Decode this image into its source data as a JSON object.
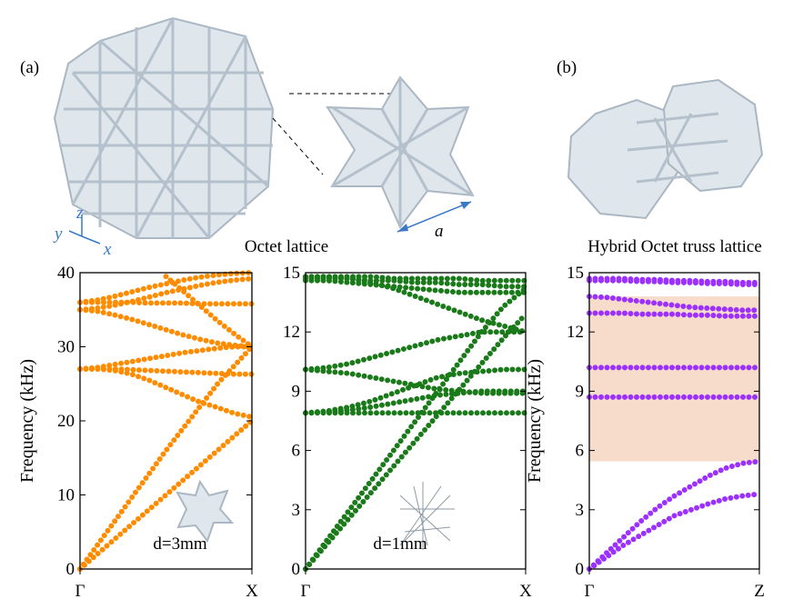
{
  "figure": {
    "panel_labels": [
      "(a)",
      "(b)"
    ],
    "captions": [
      "Octet lattice",
      "Hybrid Octet truss lattice"
    ],
    "axes_triad": [
      "y",
      "z",
      "x"
    ],
    "dimension_label": "a"
  },
  "chart_data": [
    {
      "type": "line",
      "line_style": "dotted",
      "ylabel": "Frequency (kHz)",
      "annotation": "d=3mm",
      "x": [
        0,
        0.1,
        0.2,
        0.3,
        0.4,
        0.5,
        0.6,
        0.7,
        0.8,
        0.9,
        1
      ],
      "xlim": [
        0,
        1
      ],
      "xticks": [
        {
          "value": 0,
          "label": "Γ"
        },
        {
          "value": 1,
          "label": "X"
        }
      ],
      "ylim": [
        0,
        40
      ],
      "yticks": [
        0,
        10,
        20,
        30,
        40
      ],
      "series": [
        {
          "color": "#ff8c00",
          "values": [
            0,
            2,
            4,
            6,
            8,
            10,
            12,
            14,
            16,
            18,
            20
          ]
        },
        {
          "color": "#ff8c00",
          "values": [
            0,
            3.2,
            6.4,
            9.6,
            12.8,
            16,
            19,
            22,
            25,
            27.5,
            30
          ]
        },
        {
          "color": "#ff8c00",
          "values": [
            27,
            27,
            26.8,
            26.3,
            25.5,
            24.5,
            23.5,
            22.5,
            21.8,
            21,
            20.5
          ]
        },
        {
          "color": "#ff8c00",
          "values": [
            27,
            27,
            27,
            26.9,
            26.8,
            26.7,
            26.6,
            26.5,
            26.4,
            26.3,
            26.3
          ]
        },
        {
          "color": "#ff8c00",
          "values": [
            27,
            27.2,
            27.6,
            28,
            28.4,
            28.8,
            29.2,
            29.5,
            29.8,
            30,
            30
          ]
        },
        {
          "color": "#ff8c00",
          "values": [
            35,
            34.8,
            34.3,
            33.7,
            33,
            32.3,
            31.6,
            31,
            30.5,
            30.2,
            30
          ]
        },
        {
          "color": "#ff8c00",
          "values": [
            35,
            35.2,
            35.6,
            36.1,
            36.7,
            37.3,
            37.8,
            38.3,
            38.7,
            39,
            39.2
          ]
        },
        {
          "color": "#ff8c00",
          "values": [
            36,
            36,
            36,
            36,
            35.9,
            35.9,
            35.9,
            35.8,
            35.8,
            35.8,
            35.8
          ]
        },
        {
          "color": "#ff8c00",
          "values": [
            36,
            36.3,
            36.8,
            37.4,
            38,
            38.5,
            39,
            39.4,
            39.7,
            39.9,
            40
          ]
        },
        {
          "color": "#ff8c00",
          "values": [
            null,
            null,
            null,
            null,
            null,
            39.5,
            37.5,
            35.5,
            33.5,
            31.7,
            30
          ]
        }
      ]
    },
    {
      "type": "line",
      "line_style": "dotted",
      "annotation": "d=1mm",
      "x": [
        0,
        0.1,
        0.2,
        0.3,
        0.4,
        0.5,
        0.6,
        0.7,
        0.8,
        0.9,
        1
      ],
      "xlim": [
        0,
        1
      ],
      "xticks": [
        {
          "value": 0,
          "label": "Γ"
        },
        {
          "value": 1,
          "label": "X"
        }
      ],
      "ylim": [
        0,
        15
      ],
      "yticks": [
        0,
        3,
        6,
        9,
        12,
        15
      ],
      "series": [
        {
          "color": "#1a7a1a",
          "values": [
            0,
            1.5,
            3,
            4.5,
            6,
            7.5,
            9,
            10.5,
            12,
            13.3,
            14.2
          ]
        },
        {
          "color": "#1a7a1a",
          "values": [
            0,
            1.3,
            2.6,
            3.9,
            5.2,
            6.5,
            7.8,
            9.1,
            10.4,
            11.7,
            12.9
          ]
        },
        {
          "color": "#1a7a1a",
          "values": [
            7.9,
            7.9,
            7.9,
            7.9,
            7.9,
            7.9,
            7.9,
            7.9,
            7.9,
            7.9,
            7.9
          ]
        },
        {
          "color": "#1a7a1a",
          "values": [
            7.9,
            7.95,
            8.05,
            8.2,
            8.4,
            8.6,
            8.8,
            8.9,
            9,
            9,
            9
          ]
        },
        {
          "color": "#1a7a1a",
          "values": [
            7.9,
            8,
            8.2,
            8.5,
            8.9,
            9.3,
            9.7,
            9.9,
            10,
            10.1,
            10.1
          ]
        },
        {
          "color": "#1a7a1a",
          "values": [
            10.1,
            10,
            9.9,
            9.7,
            9.5,
            9.3,
            9.1,
            9,
            8.9,
            8.9,
            8.9
          ]
        },
        {
          "color": "#1a7a1a",
          "values": [
            10.1,
            10.2,
            10.4,
            10.7,
            11,
            11.3,
            11.6,
            11.8,
            12,
            12,
            12
          ]
        },
        {
          "color": "#1a7a1a",
          "values": [
            14.6,
            14.6,
            14.5,
            14.4,
            14.3,
            14.2,
            14.1,
            14,
            14,
            14,
            14
          ]
        },
        {
          "color": "#1a7a1a",
          "values": [
            14.8,
            14.8,
            14.8,
            14.8,
            14.7,
            14.7,
            14.7,
            14.7,
            14.6,
            14.6,
            14.6
          ]
        },
        {
          "color": "#1a7a1a",
          "values": [
            14.8,
            14.8,
            14.7,
            14.5,
            14.2,
            13.8,
            13.4,
            13,
            12.6,
            12.3,
            12
          ]
        },
        {
          "color": "#1a7a1a",
          "values": [
            14.7,
            14.7,
            14.7,
            14.6,
            14.6,
            14.5,
            14.5,
            14.4,
            14.4,
            14.3,
            14.3
          ]
        }
      ]
    },
    {
      "type": "line",
      "line_style": "dotted",
      "ylabel": "Frequency (kHz)",
      "x": [
        0,
        0.1,
        0.2,
        0.3,
        0.4,
        0.5,
        0.6,
        0.7,
        0.8,
        0.9,
        1
      ],
      "xlim": [
        0,
        1
      ],
      "xticks": [
        {
          "value": 0,
          "label": "Γ"
        },
        {
          "value": 1,
          "label": "Z"
        }
      ],
      "ylim": [
        0,
        15
      ],
      "yticks": [
        0,
        3,
        6,
        9,
        12,
        15
      ],
      "band_gap": [
        5.45,
        13.8
      ],
      "band_gap_color": "#f7dccb",
      "series": [
        {
          "color": "#9b30ff",
          "values": [
            0,
            0.6,
            1.2,
            1.7,
            2.2,
            2.7,
            3,
            3.3,
            3.55,
            3.7,
            3.8
          ]
        },
        {
          "color": "#9b30ff",
          "values": [
            0,
            0.8,
            1.6,
            2.4,
            3.1,
            3.7,
            4.2,
            4.7,
            5.1,
            5.35,
            5.45
          ]
        },
        {
          "color": "#9b30ff",
          "values": [
            8.7,
            8.7,
            8.7,
            8.7,
            8.7,
            8.7,
            8.7,
            8.7,
            8.7,
            8.7,
            8.7
          ]
        },
        {
          "color": "#9b30ff",
          "values": [
            10.2,
            10.2,
            10.2,
            10.2,
            10.2,
            10.2,
            10.2,
            10.2,
            10.2,
            10.2,
            10.2
          ]
        },
        {
          "color": "#9b30ff",
          "values": [
            12.95,
            12.95,
            12.95,
            12.9,
            12.9,
            12.9,
            12.85,
            12.85,
            12.8,
            12.8,
            12.8
          ]
        },
        {
          "color": "#9b30ff",
          "values": [
            13.8,
            13.75,
            13.65,
            13.55,
            13.45,
            13.35,
            13.25,
            13.2,
            13.15,
            13.1,
            13.1
          ]
        },
        {
          "color": "#9b30ff",
          "values": [
            14.7,
            14.7,
            14.7,
            14.65,
            14.65,
            14.6,
            14.6,
            14.55,
            14.55,
            14.5,
            14.5
          ]
        },
        {
          "color": "#9b30ff",
          "values": [
            14.6,
            14.6,
            14.6,
            14.55,
            14.55,
            14.5,
            14.5,
            14.45,
            14.45,
            14.4,
            14.4
          ]
        }
      ]
    }
  ]
}
